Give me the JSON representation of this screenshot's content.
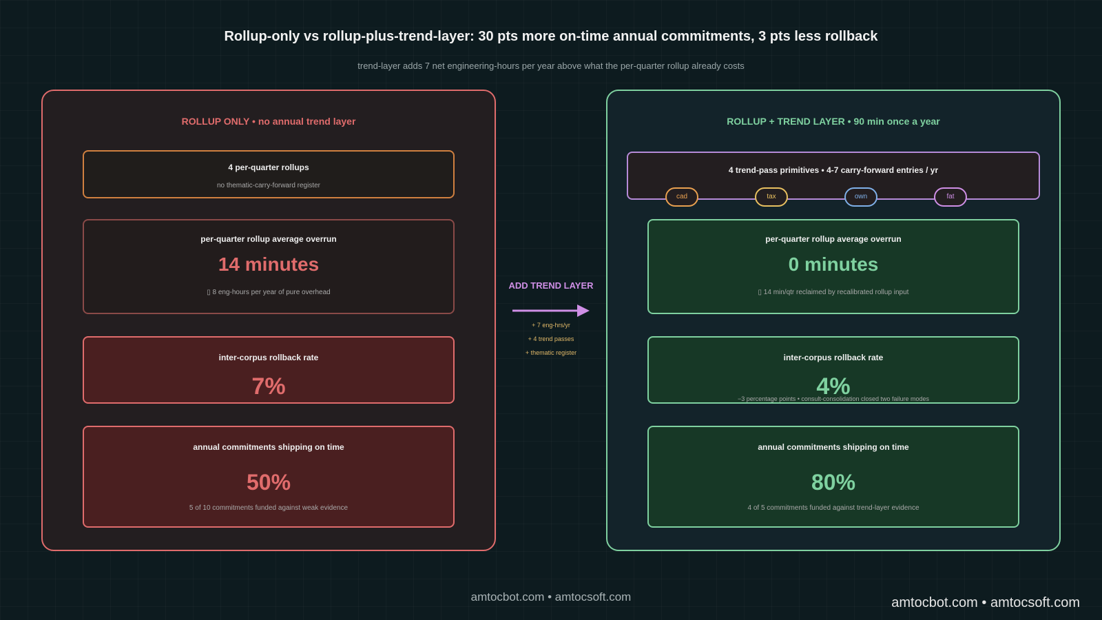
{
  "header": {
    "title": "Rollup-only vs rollup-plus-trend-layer: 30 pts more on-time annual commitments, 3 pts less rollback",
    "subtitle": "trend-layer adds 7 net engineering-hours per year above what the per-quarter rollup already costs"
  },
  "left": {
    "heading": "ROLLUP ONLY  •  no annual trend layer",
    "rollups": {
      "label": "4 per-quarter rollups",
      "note": "no thematic-carry-forward register"
    },
    "overrun": {
      "label": "per-quarter rollup average overrun",
      "value": "14 minutes",
      "note": "▯ 8 eng-hours per year of pure overhead"
    },
    "rollback": {
      "label": "inter-corpus rollback rate",
      "value": "7%"
    },
    "commitments": {
      "label": "annual commitments shipping on time",
      "value": "50%",
      "note": "5 of 10 commitments funded against weak evidence"
    }
  },
  "middle": {
    "label": "ADD TREND LAYER",
    "notes": [
      "+ 7 eng-hrs/yr",
      "+ 4 trend passes",
      "+ thematic register"
    ]
  },
  "right": {
    "heading": "ROLLUP + TREND LAYER  •  90 min once a year",
    "primitives": {
      "label": "4 trend-pass primitives  •  4-7 carry-forward entries / yr",
      "pills": [
        "cad",
        "tax",
        "own",
        "fat"
      ]
    },
    "overrun": {
      "label": "per-quarter rollup average overrun",
      "value": "0 minutes",
      "note": "▯ 14 min/qtr reclaimed by recalibrated rollup input"
    },
    "rollback": {
      "label": "inter-corpus rollback rate",
      "value": "4%",
      "note": "−3 percentage points  •  consult-consolidation closed two failure modes"
    },
    "commitments": {
      "label": "annual commitments shipping on time",
      "value": "80%",
      "note": "4 of 5 commitments funded against trend-layer evidence"
    }
  },
  "footer": {
    "center": "amtocbot.com  •  amtocsoft.com",
    "corner": "amtocbot.com  •  amtocsoft.com"
  },
  "colors": {
    "red": "#e06c6c",
    "green": "#7fd1a0",
    "purple": "#cf8fe6",
    "pill_cad": "#e8a050",
    "pill_tax": "#e8c060",
    "pill_own": "#7fb0e8",
    "pill_fat": "#cf8fe6"
  }
}
